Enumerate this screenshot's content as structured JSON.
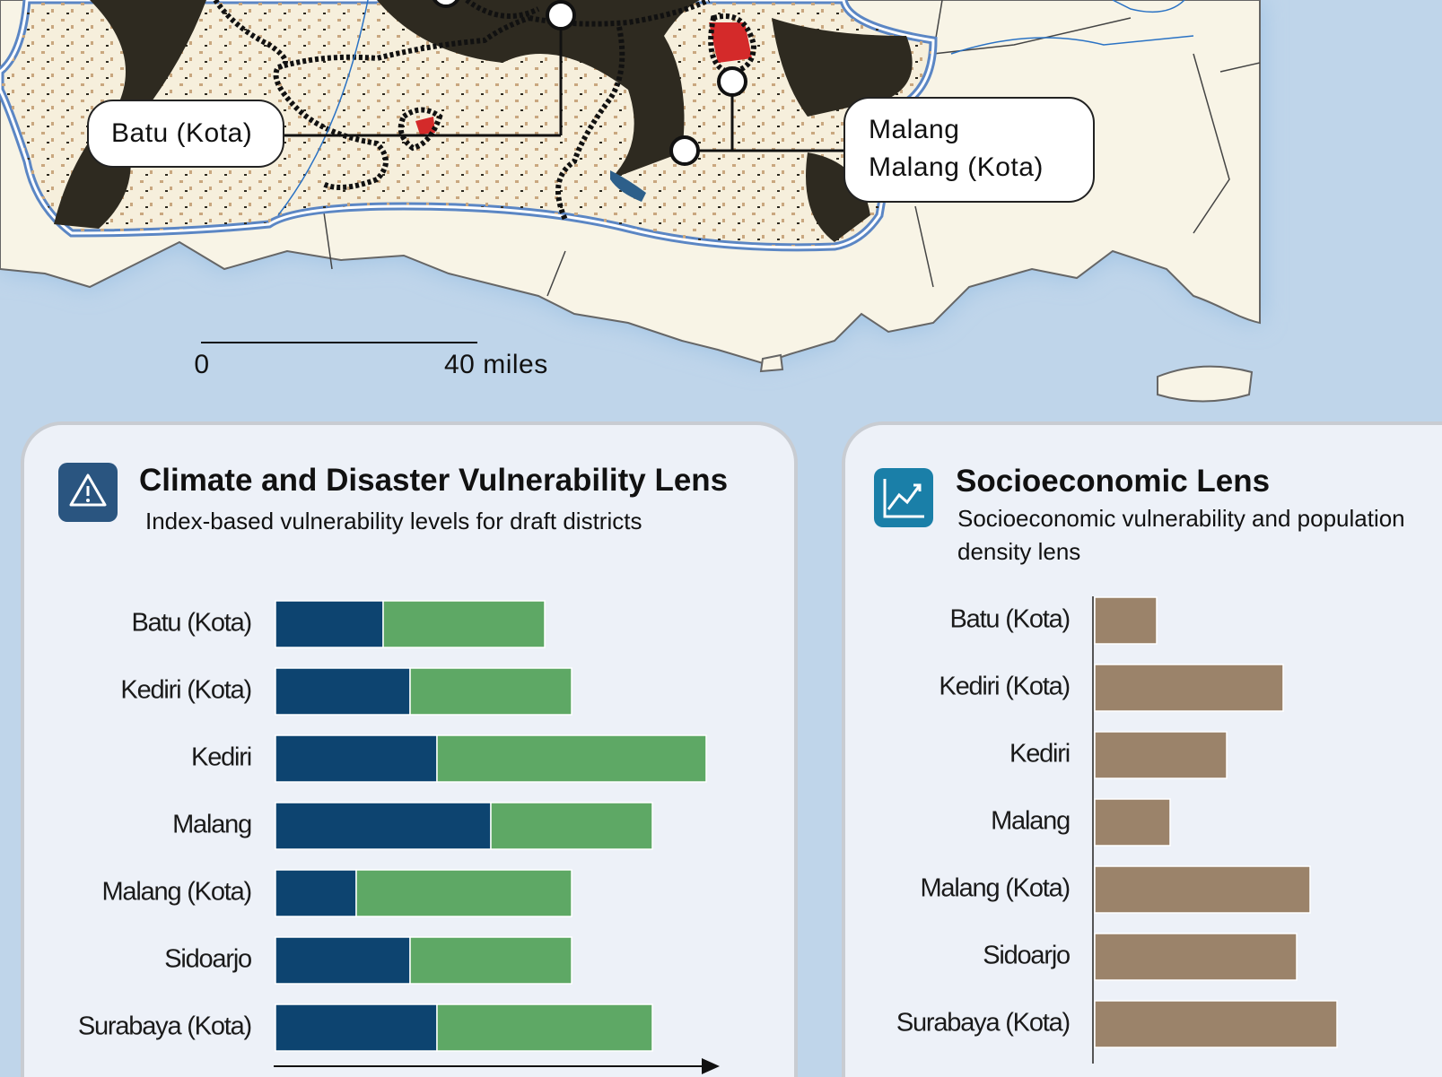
{
  "map": {
    "labels": [
      "Batu (Kota)",
      "Malang",
      "Malang (Kota)"
    ],
    "scale_bar": {
      "start": "0",
      "end": "40 miles"
    }
  },
  "chart_data": [
    {
      "type": "stacked-bar",
      "title": "Climate and Disaster Vulnerability Lens",
      "subtitle": "Index-based vulnerability levels for draft districts",
      "categories": [
        "Batu (Kota)",
        "Kediri (Kota)",
        "Kediri",
        "Malang",
        "Malang (Kota)",
        "Sidoarjo",
        "Surabaya (Kota)"
      ],
      "series": [
        {
          "color": "#0d4470",
          "values": [
            4,
            5,
            6,
            8,
            3,
            5,
            6
          ]
        },
        {
          "color": "#5ea865",
          "values": [
            6,
            6,
            10,
            6,
            8,
            6,
            8
          ]
        }
      ],
      "xlim": [
        0,
        16
      ]
    },
    {
      "type": "bar",
      "title": "Socioeconomic Lens",
      "subtitle": "Socioeconomic vulnerability and population density lens",
      "categories": [
        "Batu (Kota)",
        "Kediri (Kota)",
        "Kediri",
        "Malang",
        "Malang (Kota)",
        "Sidoarjo",
        "Surabaya (Kota)"
      ],
      "values": [
        2.3,
        7,
        4.9,
        2.8,
        8,
        7.5,
        9
      ],
      "color": "#9b836a",
      "xlim": [
        0,
        10
      ]
    }
  ]
}
